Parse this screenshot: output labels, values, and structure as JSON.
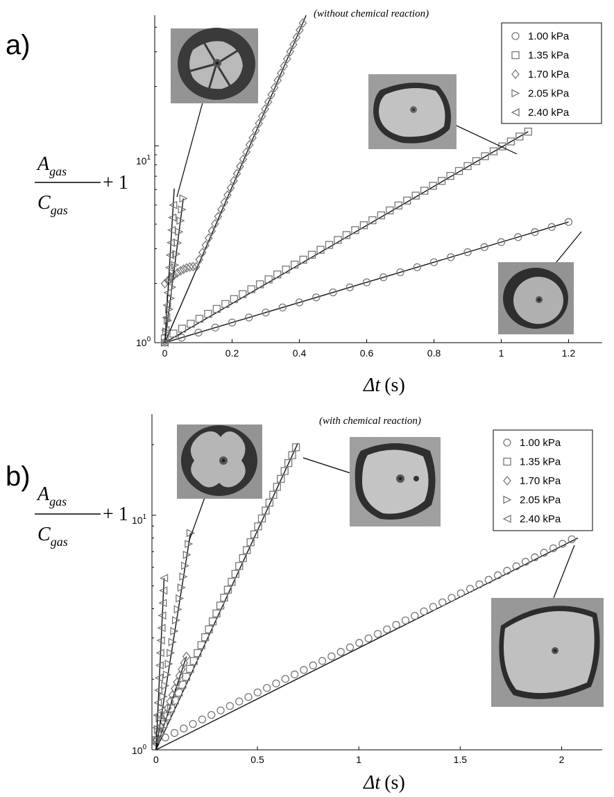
{
  "figure": {
    "panels": [
      {
        "letter": "a)",
        "annotation": "(without chemical reaction)",
        "ylabel": {
          "numerator": "A",
          "numerator_sub": "gas",
          "denominator": "C",
          "denominator_sub": "gas",
          "suffix": "+ 1"
        },
        "xlabel": {
          "symbol": "Δt",
          "unit": "(s)"
        },
        "y_tick_labels": [
          {
            "base": "10",
            "exp": "0"
          },
          {
            "base": "10",
            "exp": "1"
          }
        ],
        "photos": [
          "bubble-small-radial",
          "bubble-thick-ring",
          "bubble-ring-inset"
        ]
      },
      {
        "letter": "b)",
        "annotation": "(with chemical reaction)",
        "ylabel": {
          "numerator": "A",
          "numerator_sub": "gas",
          "denominator": "C",
          "denominator_sub": "gas",
          "suffix": "+ 1"
        },
        "xlabel": {
          "symbol": "Δt",
          "unit": "(s)"
        },
        "y_tick_labels": [
          {
            "base": "10",
            "exp": "0"
          },
          {
            "base": "10",
            "exp": "1"
          }
        ],
        "photos": [
          "bubble-lobed",
          "bubble-split",
          "bubble-thin-ring"
        ]
      }
    ]
  },
  "chart_data": [
    {
      "type": "scatter",
      "yscale": "log",
      "xlim": [
        -0.03,
        1.3
      ],
      "ylim": [
        1,
        46
      ],
      "xticks": [
        0,
        0.2,
        0.4,
        0.6,
        0.8,
        1,
        1.2
      ],
      "xtick_labels": [
        "0",
        "0.2",
        "0.4",
        "0.6",
        "0.8",
        "1",
        "1.2"
      ],
      "legend": {
        "placement": "top-right",
        "entries": [
          "1.00 kPa",
          "1.35 kPa",
          "1.70 kPa",
          "2.05 kPa",
          "2.40 kPa"
        ]
      },
      "grid": false,
      "series": [
        {
          "name": "1.00 kPa",
          "marker": "circle",
          "x_start": 0.0,
          "x_end": 1.2,
          "n": 25,
          "y_start": 1.0,
          "y_end": 4.1,
          "fit_end": 1.2
        },
        {
          "name": "1.35 kPa",
          "marker": "square",
          "x_start": 0.0,
          "x_end": 1.08,
          "n": 43,
          "y_start": 1.05,
          "y_end": 11.8,
          "fit_end": 1.08
        },
        {
          "name": "1.70 kPa",
          "marker": "diamond",
          "x_start": 0.0,
          "x_end": 0.41,
          "n": 45,
          "y_start": 1.05,
          "y_end": 42.0,
          "fit_end": 0.42,
          "wobble": true
        },
        {
          "name": "2.05 kPa",
          "marker": "triangle-right",
          "x_start": 0.0,
          "x_end": 0.055,
          "n": 14,
          "y_start": 1.0,
          "y_end": 5.4,
          "fit_end": 0.055
        },
        {
          "name": "2.40 kPa",
          "marker": "triangle-left",
          "x_start": 0.0,
          "x_end": 0.025,
          "n": 12,
          "y_start": 1.0,
          "y_end": 5.0,
          "fit_end": 0.028
        }
      ]
    },
    {
      "type": "scatter",
      "yscale": "log",
      "xlim": [
        -0.02,
        2.2
      ],
      "ylim": [
        1,
        27
      ],
      "xticks": [
        0,
        0.5,
        1,
        1.5,
        2
      ],
      "xtick_labels": [
        "0",
        "0.5",
        "1",
        "1.5",
        "2"
      ],
      "legend": {
        "placement": "top-right",
        "entries": [
          "1.00 kPa",
          "1.35 kPa",
          "1.70 kPa",
          "2.05 kPa",
          "2.40 kPa"
        ]
      },
      "grid": false,
      "series": [
        {
          "name": "1.00 kPa",
          "marker": "circle",
          "x_start": 0.0,
          "x_end": 2.05,
          "n": 46,
          "y_start": 1.08,
          "y_end": 7.9,
          "fit_end": 2.08,
          "fit_y_end": 8.0
        },
        {
          "name": "1.35 kPa",
          "marker": "square",
          "x_start": 0.0,
          "x_end": 0.69,
          "n": 38,
          "y_start": 1.1,
          "y_end": 19.5,
          "fit_end": 0.7
        },
        {
          "name": "1.70 kPa",
          "marker": "diamond",
          "x_start": 0.0,
          "x_end": 0.15,
          "n": 14,
          "y_start": 1.1,
          "y_end": 2.5,
          "fit_end": 0.15
        },
        {
          "name": "2.05 kPa",
          "marker": "triangle-right",
          "x_start": 0.0,
          "x_end": 0.17,
          "n": 20,
          "y_start": 1.1,
          "y_end": 8.4,
          "fit_end": 0.17
        },
        {
          "name": "2.40 kPa",
          "marker": "triangle-left",
          "x_start": 0.0,
          "x_end": 0.04,
          "n": 14,
          "y_start": 1.1,
          "y_end": 5.4,
          "fit_end": 0.04
        }
      ]
    }
  ]
}
